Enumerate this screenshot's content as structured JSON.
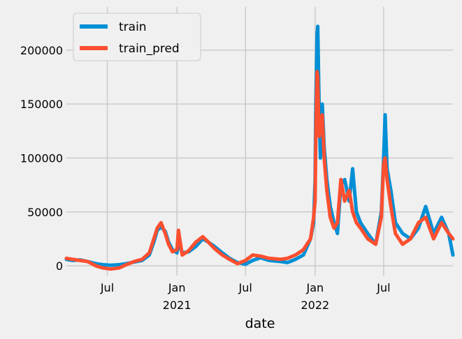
{
  "chart_data": {
    "type": "line",
    "xlabel": "date",
    "ylabel": "",
    "xlim": [
      "2020-03-15",
      "2022-12-31"
    ],
    "ylim": [
      -9000,
      240000
    ],
    "grid": true,
    "legend": {
      "placement": "top-left"
    },
    "x_ticks": [
      {
        "date": "2020-07-01",
        "label": "Jul",
        "sub": ""
      },
      {
        "date": "2021-01-01",
        "label": "Jan",
        "sub": "2021"
      },
      {
        "date": "2021-07-01",
        "label": "Jul",
        "sub": ""
      },
      {
        "date": "2022-01-01",
        "label": "Jan",
        "sub": "2022"
      },
      {
        "date": "2022-07-01",
        "label": "Jul",
        "sub": ""
      }
    ],
    "y_ticks": [
      0,
      50000,
      100000,
      150000,
      200000
    ],
    "series": [
      {
        "name": "train",
        "color": "#008fd5",
        "points": [
          [
            "2020-03-15",
            6000
          ],
          [
            "2020-04-01",
            5000
          ],
          [
            "2020-04-20",
            5500
          ],
          [
            "2020-05-10",
            4000
          ],
          [
            "2020-06-01",
            2000
          ],
          [
            "2020-06-20",
            1000
          ],
          [
            "2020-07-10",
            500
          ],
          [
            "2020-08-01",
            1000
          ],
          [
            "2020-08-20",
            2000
          ],
          [
            "2020-09-10",
            3500
          ],
          [
            "2020-10-01",
            5000
          ],
          [
            "2020-10-20",
            10000
          ],
          [
            "2020-11-01",
            22000
          ],
          [
            "2020-11-10",
            33000
          ],
          [
            "2020-11-20",
            36000
          ],
          [
            "2020-12-01",
            32000
          ],
          [
            "2020-12-10",
            22000
          ],
          [
            "2020-12-20",
            15000
          ],
          [
            "2021-01-01",
            12000
          ],
          [
            "2021-01-05",
            22000
          ],
          [
            "2021-01-15",
            12000
          ],
          [
            "2021-02-01",
            13000
          ],
          [
            "2021-02-20",
            18000
          ],
          [
            "2021-03-10",
            25000
          ],
          [
            "2021-03-25",
            22000
          ],
          [
            "2021-04-10",
            18000
          ],
          [
            "2021-05-01",
            12000
          ],
          [
            "2021-05-20",
            7000
          ],
          [
            "2021-06-10",
            3000
          ],
          [
            "2021-07-01",
            1500
          ],
          [
            "2021-07-20",
            5000
          ],
          [
            "2021-08-10",
            7500
          ],
          [
            "2021-09-01",
            5000
          ],
          [
            "2021-10-01",
            4000
          ],
          [
            "2021-10-20",
            3000
          ],
          [
            "2021-11-10",
            6000
          ],
          [
            "2021-12-01",
            10000
          ],
          [
            "2021-12-20",
            25000
          ],
          [
            "2021-12-28",
            40000
          ],
          [
            "2022-01-01",
            80000
          ],
          [
            "2022-01-03",
            150000
          ],
          [
            "2022-01-06",
            215000
          ],
          [
            "2022-01-08",
            222000
          ],
          [
            "2022-01-10",
            180000
          ],
          [
            "2022-01-12",
            140000
          ],
          [
            "2022-01-15",
            100000
          ],
          [
            "2022-01-20",
            150000
          ],
          [
            "2022-01-25",
            110000
          ],
          [
            "2022-02-01",
            80000
          ],
          [
            "2022-02-10",
            55000
          ],
          [
            "2022-02-20",
            40000
          ],
          [
            "2022-03-01",
            30000
          ],
          [
            "2022-03-10",
            75000
          ],
          [
            "2022-03-20",
            80000
          ],
          [
            "2022-04-01",
            60000
          ],
          [
            "2022-04-10",
            90000
          ],
          [
            "2022-04-20",
            50000
          ],
          [
            "2022-05-01",
            40000
          ],
          [
            "2022-05-20",
            30000
          ],
          [
            "2022-06-10",
            20000
          ],
          [
            "2022-06-25",
            50000
          ],
          [
            "2022-07-01",
            100000
          ],
          [
            "2022-07-05",
            140000
          ],
          [
            "2022-07-10",
            90000
          ],
          [
            "2022-07-20",
            70000
          ],
          [
            "2022-08-01",
            40000
          ],
          [
            "2022-08-20",
            30000
          ],
          [
            "2022-09-10",
            25000
          ],
          [
            "2022-10-01",
            35000
          ],
          [
            "2022-10-20",
            55000
          ],
          [
            "2022-11-10",
            30000
          ],
          [
            "2022-12-01",
            45000
          ],
          [
            "2022-12-20",
            30000
          ],
          [
            "2022-12-31",
            10000
          ]
        ]
      },
      {
        "name": "train_pred",
        "color": "#fc4f30",
        "points": [
          [
            "2020-03-15",
            7000
          ],
          [
            "2020-04-01",
            6000
          ],
          [
            "2020-04-20",
            5000
          ],
          [
            "2020-05-10",
            4000
          ],
          [
            "2020-06-01",
            0
          ],
          [
            "2020-06-20",
            -2000
          ],
          [
            "2020-07-10",
            -3000
          ],
          [
            "2020-08-01",
            -2000
          ],
          [
            "2020-08-20",
            1000
          ],
          [
            "2020-09-10",
            4000
          ],
          [
            "2020-10-01",
            6000
          ],
          [
            "2020-10-20",
            12000
          ],
          [
            "2020-11-01",
            25000
          ],
          [
            "2020-11-10",
            35000
          ],
          [
            "2020-11-20",
            40000
          ],
          [
            "2020-12-01",
            30000
          ],
          [
            "2020-12-10",
            20000
          ],
          [
            "2020-12-20",
            13000
          ],
          [
            "2021-01-01",
            15000
          ],
          [
            "2021-01-05",
            33000
          ],
          [
            "2021-01-15",
            10000
          ],
          [
            "2021-02-01",
            14000
          ],
          [
            "2021-02-20",
            22000
          ],
          [
            "2021-03-10",
            27000
          ],
          [
            "2021-03-25",
            22000
          ],
          [
            "2021-04-10",
            16000
          ],
          [
            "2021-05-01",
            10000
          ],
          [
            "2021-05-20",
            6000
          ],
          [
            "2021-06-10",
            2000
          ],
          [
            "2021-07-01",
            5000
          ],
          [
            "2021-07-20",
            10000
          ],
          [
            "2021-08-10",
            9000
          ],
          [
            "2021-09-01",
            7000
          ],
          [
            "2021-10-01",
            6000
          ],
          [
            "2021-10-20",
            7000
          ],
          [
            "2021-11-10",
            10000
          ],
          [
            "2021-12-01",
            15000
          ],
          [
            "2021-12-20",
            25000
          ],
          [
            "2021-12-28",
            45000
          ],
          [
            "2022-01-01",
            60000
          ],
          [
            "2022-01-03",
            120000
          ],
          [
            "2022-01-06",
            180000
          ],
          [
            "2022-01-08",
            175000
          ],
          [
            "2022-01-10",
            140000
          ],
          [
            "2022-01-12",
            120000
          ],
          [
            "2022-01-15",
            130000
          ],
          [
            "2022-01-20",
            140000
          ],
          [
            "2022-01-25",
            100000
          ],
          [
            "2022-02-01",
            70000
          ],
          [
            "2022-02-10",
            45000
          ],
          [
            "2022-02-20",
            35000
          ],
          [
            "2022-03-01",
            40000
          ],
          [
            "2022-03-10",
            80000
          ],
          [
            "2022-03-20",
            60000
          ],
          [
            "2022-04-01",
            70000
          ],
          [
            "2022-04-10",
            50000
          ],
          [
            "2022-04-20",
            40000
          ],
          [
            "2022-05-01",
            35000
          ],
          [
            "2022-05-20",
            25000
          ],
          [
            "2022-06-10",
            20000
          ],
          [
            "2022-06-25",
            45000
          ],
          [
            "2022-07-01",
            95000
          ],
          [
            "2022-07-05",
            100000
          ],
          [
            "2022-07-10",
            80000
          ],
          [
            "2022-07-20",
            55000
          ],
          [
            "2022-08-01",
            30000
          ],
          [
            "2022-08-20",
            20000
          ],
          [
            "2022-09-10",
            25000
          ],
          [
            "2022-10-01",
            40000
          ],
          [
            "2022-10-20",
            45000
          ],
          [
            "2022-11-10",
            25000
          ],
          [
            "2022-12-01",
            40000
          ],
          [
            "2022-12-20",
            30000
          ],
          [
            "2022-12-31",
            25000
          ]
        ]
      }
    ]
  }
}
